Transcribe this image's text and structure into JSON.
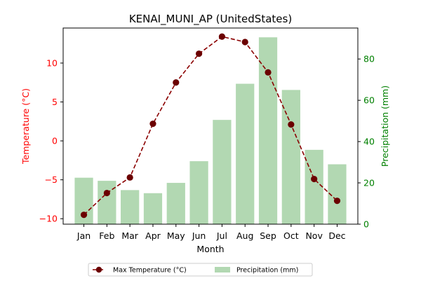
{
  "chart_data": {
    "type": "bar",
    "title": "KENAI_MUNI_AP (UnitedStates)",
    "xlabel": "Month",
    "categories": [
      "Jan",
      "Feb",
      "Mar",
      "Apr",
      "May",
      "Jun",
      "Jul",
      "Aug",
      "Sep",
      "Oct",
      "Nov",
      "Dec"
    ],
    "y_left": {
      "label": "Temperature (°C)",
      "range": [
        -10.7,
        14.5
      ],
      "ticks": [
        -10,
        -5,
        0,
        5,
        10
      ],
      "color": "#ff0000"
    },
    "y_right": {
      "label": "Precipitation (mm)",
      "range": [
        0,
        95
      ],
      "ticks": [
        0,
        20,
        40,
        60,
        80
      ],
      "color": "#008000"
    },
    "series": [
      {
        "name": "Max Temperature (°C)",
        "type": "line",
        "axis": "left",
        "color": "#8b0000",
        "marker_color": "#6b0000",
        "line_style": "dashed",
        "values": [
          -9.5,
          -6.7,
          -4.7,
          2.2,
          7.5,
          11.2,
          13.4,
          12.7,
          8.8,
          2.1,
          -4.9,
          -7.7
        ]
      },
      {
        "name": "Precipitation (mm)",
        "type": "bar",
        "axis": "right",
        "color": "#b2d8b2",
        "values": [
          22.5,
          21,
          16.5,
          15,
          20,
          30.5,
          50.5,
          68,
          90.5,
          65,
          36,
          29
        ]
      }
    ],
    "legend": {
      "placement": "bottom-center"
    },
    "grid": false
  }
}
